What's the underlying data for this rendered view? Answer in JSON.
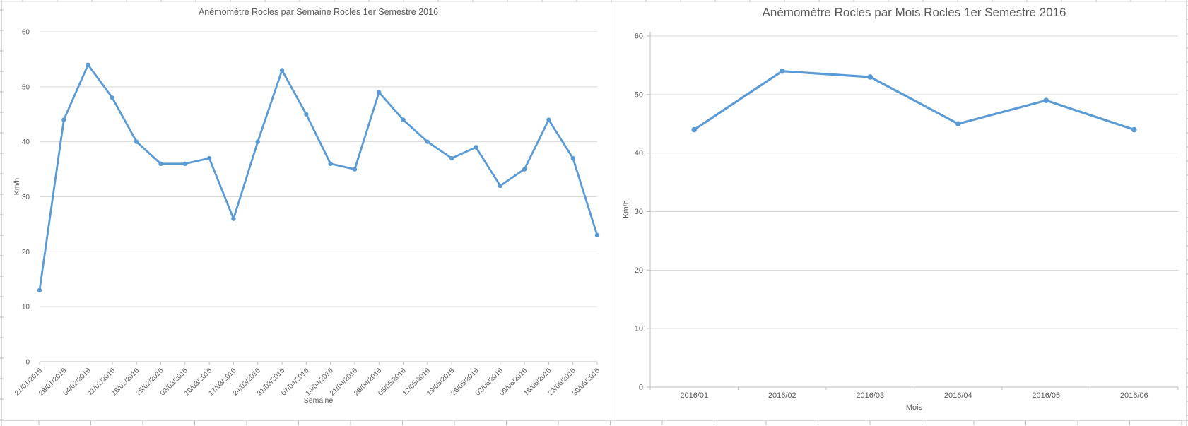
{
  "colors": {
    "series_blue": "#5B9BD5",
    "gridline": "#D9D9D9",
    "axis": "#BFBFBF",
    "text": "#595959",
    "panel_border": "#D9D9D9"
  },
  "chart_data": [
    {
      "type": "line",
      "title": "Anémomètre Rocles par Semaine Rocles 1er Semestre 2016",
      "xlabel": "Semaine",
      "ylabel": "Km/h",
      "categories": [
        "21/01/2016",
        "28/01/2016",
        "04/02/2016",
        "11/02/2016",
        "18/02/2016",
        "25/02/2016",
        "03/03/2016",
        "10/03/2016",
        "17/03/2016",
        "24/03/2016",
        "31/03/2016",
        "07/04/2016",
        "14/04/2016",
        "21/04/2016",
        "28/04/2016",
        "05/05/2016",
        "12/05/2016",
        "19/05/2016",
        "26/05/2016",
        "02/06/2016",
        "09/06/2016",
        "16/06/2016",
        "23/06/2016",
        "30/06/2016"
      ],
      "values": [
        13,
        44,
        54,
        48,
        40,
        36,
        36,
        37,
        26,
        40,
        53,
        45,
        36,
        35,
        49,
        44,
        40,
        37,
        39,
        32,
        35,
        44,
        37,
        23
      ],
      "ylim": [
        0,
        60
      ],
      "ytick_step": 10,
      "grid": true,
      "legend": "none",
      "line_color": "#5B9BD5"
    },
    {
      "type": "line",
      "title": "Anémomètre Rocles par Mois Rocles 1er Semestre 2016",
      "xlabel": "Mois",
      "ylabel": "Km/h",
      "categories": [
        "2016/01",
        "2016/02",
        "2016/03",
        "2016/04",
        "2016/05",
        "2016/06"
      ],
      "values": [
        44,
        54,
        53,
        45,
        49,
        44
      ],
      "ylim": [
        0,
        60
      ],
      "ytick_step": 10,
      "grid": true,
      "legend": "none",
      "line_color": "#5B9BD5"
    }
  ]
}
